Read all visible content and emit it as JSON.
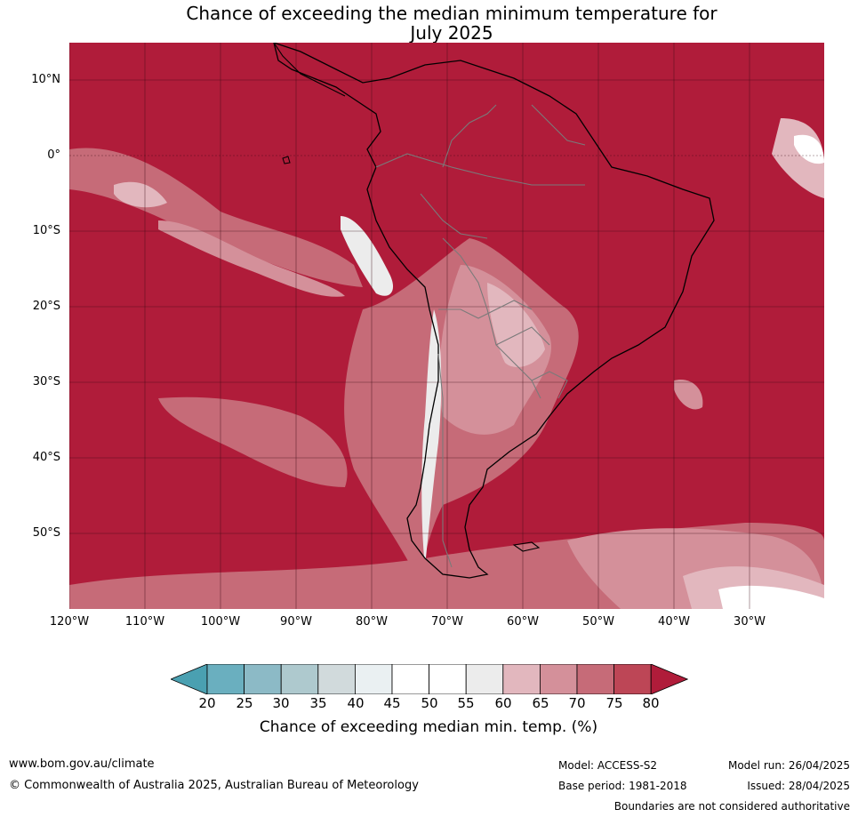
{
  "title": {
    "line1": "Chance of exceeding the median minimum temperature for",
    "line2": "July 2025"
  },
  "map": {
    "region": "South America and surrounding oceans",
    "lat_ticks": [
      "10°N",
      "0°",
      "10°S",
      "20°S",
      "30°S",
      "40°S",
      "50°S"
    ],
    "lon_ticks": [
      "120°W",
      "110°W",
      "100°W",
      "90°W",
      "80°W",
      "70°W",
      "60°W",
      "50°W",
      "40°W",
      "30°W"
    ],
    "background_color": "#b01c3a"
  },
  "colorbar": {
    "labels": [
      "20",
      "25",
      "30",
      "35",
      "40",
      "45",
      "50",
      "55",
      "60",
      "65",
      "70",
      "75",
      "80"
    ],
    "colors": [
      "#4aa0b1",
      "#6aafbf",
      "#8cbac6",
      "#aec9ce",
      "#d1dadc",
      "#eaf0f2",
      "#ffffff",
      "#ffffff",
      "#ececec",
      "#e2b7be",
      "#d4909a",
      "#c66b78",
      "#bd4656",
      "#b01c3a"
    ],
    "title": "Chance of exceeding median min. temp. (%)"
  },
  "footer": {
    "website": "www.bom.gov.au/climate",
    "copyright": "© Commonwealth of Australia 2025, Australian Bureau of Meteorology",
    "model": "Model: ACCESS-S2",
    "base_period": "Base period: 1981-2018",
    "model_run": "Model run: 26/04/2025",
    "issued": "Issued: 28/04/2025",
    "disclaimer": "Boundaries are not considered authoritative"
  }
}
